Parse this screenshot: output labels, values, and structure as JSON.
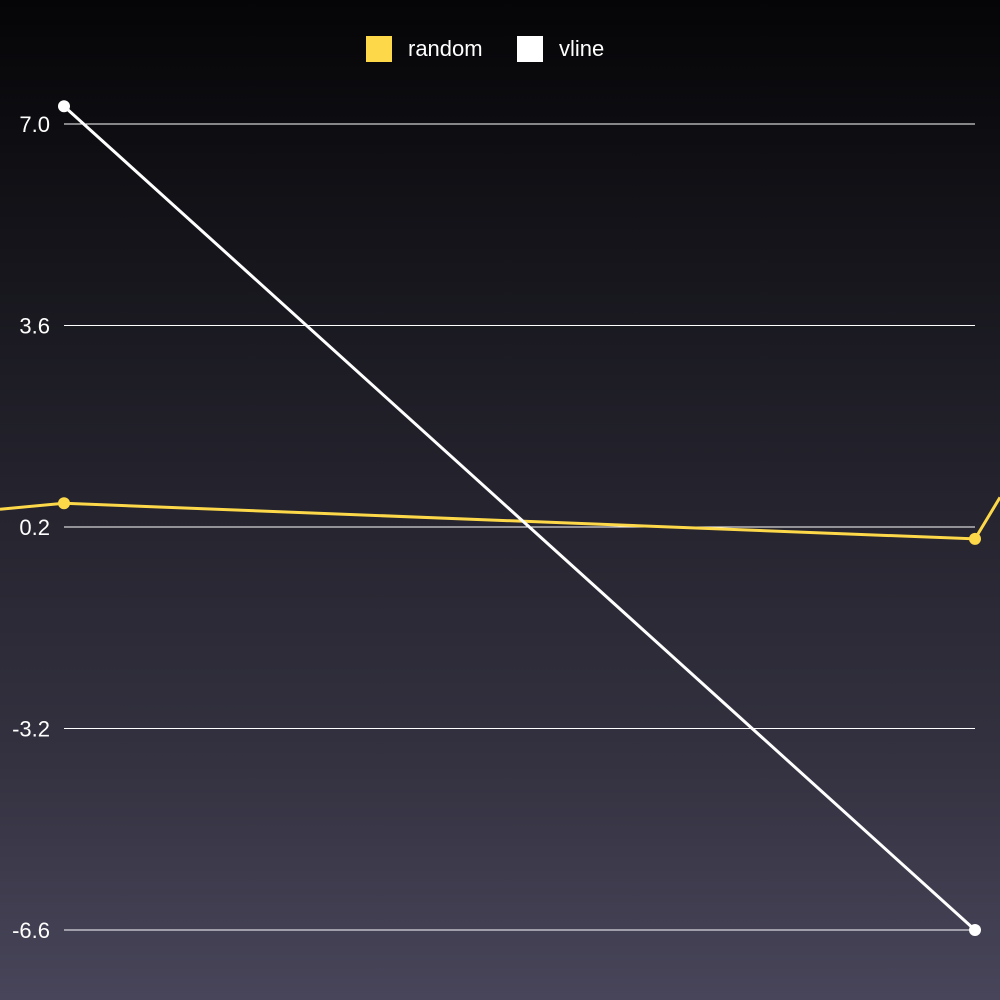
{
  "chart_data": {
    "type": "line",
    "title": "",
    "xlabel": "",
    "ylabel": "",
    "x": [
      0,
      1
    ],
    "ylim": [
      -6.6,
      7.0
    ],
    "yticks": [
      7.0,
      3.6,
      0.2,
      -3.2,
      -6.6
    ],
    "ytick_labels": [
      "7.0",
      "3.6",
      "0.2",
      "-3.2",
      "-6.6"
    ],
    "grid": true,
    "legend": "top-center",
    "series": [
      {
        "name": "random",
        "color": "#fdd94a",
        "values": [
          0.6,
          -0.0
        ],
        "extends_left_to": 0.5,
        "extends_right_to": 0.7
      },
      {
        "name": "vline",
        "color": "#ffffff",
        "values": [
          7.3,
          -6.6
        ]
      }
    ]
  }
}
